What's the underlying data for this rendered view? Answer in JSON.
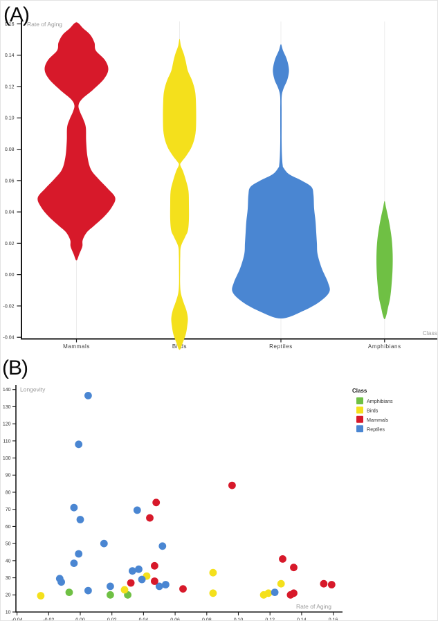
{
  "palette": {
    "Amphibians": "#6fc044",
    "Birds": "#f4e01c",
    "Mammals": "#d7192a",
    "Reptiles": "#4a86d2"
  },
  "text_colors": {
    "axis_title_gray": "#9b9b9b",
    "tick_label": "#333333",
    "category_label": "#3a3a3a",
    "axis_line": "#1a1a1a",
    "gridline": "#ececec",
    "legend_title": "#222222",
    "legend_label": "#333333"
  },
  "chart_data": [
    {
      "type": "violin",
      "panel": "A",
      "title": "(A)",
      "ylabel": "Rate of Aging",
      "xlabel": "Class",
      "ylim": [
        -0.04,
        0.16
      ],
      "yticks": [
        0.16,
        0.14,
        0.12,
        0.1,
        0.08,
        0.06,
        0.04,
        0.02,
        0.0,
        -0.02,
        -0.04
      ],
      "grid": "faint vertical line per category",
      "categories": [
        "Mammals",
        "Birds",
        "Reptiles",
        "Amphibians"
      ],
      "profile_units": "pairs of [rate_of_aging_value, half_width_px]",
      "series": [
        {
          "name": "Mammals",
          "color": "#d7192a",
          "profile": [
            [
              0.161,
              0
            ],
            [
              0.157,
              10
            ],
            [
              0.153,
              20
            ],
            [
              0.148,
              26
            ],
            [
              0.143,
              28
            ],
            [
              0.137,
              41
            ],
            [
              0.131,
              46
            ],
            [
              0.125,
              40
            ],
            [
              0.118,
              24
            ],
            [
              0.112,
              8
            ],
            [
              0.108,
              3
            ],
            [
              0.104,
              5
            ],
            [
              0.099,
              10
            ],
            [
              0.094,
              13.5
            ],
            [
              0.085,
              14
            ],
            [
              0.075,
              16
            ],
            [
              0.067,
              21
            ],
            [
              0.061,
              32
            ],
            [
              0.055,
              45
            ],
            [
              0.049,
              56
            ],
            [
              0.043,
              51
            ],
            [
              0.037,
              40
            ],
            [
              0.031,
              25
            ],
            [
              0.027,
              15
            ],
            [
              0.022,
              9
            ],
            [
              0.018,
              8.5
            ],
            [
              0.013,
              4
            ],
            [
              0.009,
              0
            ]
          ]
        },
        {
          "name": "Birds",
          "color": "#f4e01c",
          "profile": [
            [
              0.1505,
              0
            ],
            [
              0.146,
              2
            ],
            [
              0.141,
              6
            ],
            [
              0.136,
              9
            ],
            [
              0.13,
              12
            ],
            [
              0.124,
              18
            ],
            [
              0.118,
              22
            ],
            [
              0.112,
              23.5
            ],
            [
              0.1,
              24
            ],
            [
              0.09,
              23
            ],
            [
              0.082,
              18
            ],
            [
              0.076,
              10
            ],
            [
              0.072,
              3
            ],
            [
              0.07,
              1
            ],
            [
              0.066,
              5
            ],
            [
              0.059,
              10
            ],
            [
              0.053,
              13
            ],
            [
              0.045,
              13.5
            ],
            [
              0.035,
              13.5
            ],
            [
              0.028,
              12
            ],
            [
              0.024,
              8
            ],
            [
              0.018,
              2
            ],
            [
              0.012,
              1
            ],
            [
              0.002,
              0.8
            ],
            [
              -0.006,
              0.8
            ],
            [
              -0.012,
              2
            ],
            [
              -0.018,
              6
            ],
            [
              -0.023,
              10
            ],
            [
              -0.028,
              12
            ],
            [
              -0.033,
              11
            ],
            [
              -0.038,
              9
            ],
            [
              -0.043,
              5
            ],
            [
              -0.048,
              0
            ]
          ]
        },
        {
          "name": "Reptiles",
          "color": "#4a86d2",
          "profile": [
            [
              0.147,
              0
            ],
            [
              0.143,
              3
            ],
            [
              0.138,
              8
            ],
            [
              0.133,
              11
            ],
            [
              0.129,
              11.5
            ],
            [
              0.124,
              9
            ],
            [
              0.119,
              4
            ],
            [
              0.114,
              1.2
            ],
            [
              0.105,
              1
            ],
            [
              0.095,
              1
            ],
            [
              0.085,
              1
            ],
            [
              0.076,
              1.5
            ],
            [
              0.07,
              2.5
            ],
            [
              0.068,
              4
            ],
            [
              0.064,
              12
            ],
            [
              0.06,
              30
            ],
            [
              0.056,
              44
            ],
            [
              0.051,
              47
            ],
            [
              0.042,
              48
            ],
            [
              0.034,
              50
            ],
            [
              0.027,
              51
            ],
            [
              0.02,
              52
            ],
            [
              0.013,
              53
            ],
            [
              0.004,
              59
            ],
            [
              -0.005,
              68
            ],
            [
              -0.011,
              70
            ],
            [
              -0.017,
              57
            ],
            [
              -0.023,
              33
            ],
            [
              -0.028,
              0
            ]
          ]
        },
        {
          "name": "Amphibians",
          "color": "#6fc044",
          "profile": [
            [
              0.047,
              0
            ],
            [
              0.043,
              2
            ],
            [
              0.037,
              5
            ],
            [
              0.03,
              8
            ],
            [
              0.022,
              10.5
            ],
            [
              0.013,
              11.7
            ],
            [
              0.003,
              11.5
            ],
            [
              -0.007,
              10
            ],
            [
              -0.015,
              8
            ],
            [
              -0.021,
              5
            ],
            [
              -0.026,
              2.5
            ],
            [
              -0.0285,
              0
            ]
          ]
        }
      ]
    },
    {
      "type": "scatter",
      "panel": "B",
      "title": "(B)",
      "xlabel": "Rate of Aging",
      "ylabel": "Longevity",
      "xlim": [
        -0.04,
        0.16
      ],
      "ylim": [
        10,
        140
      ],
      "xticks": [
        -0.04,
        -0.02,
        0.0,
        0.02,
        0.04,
        0.06,
        0.08,
        0.1,
        0.12,
        0.14,
        0.16
      ],
      "yticks": [
        140,
        130,
        120,
        110,
        100,
        90,
        80,
        70,
        60,
        50,
        40,
        30,
        20,
        10
      ],
      "grid": "off",
      "legend": {
        "title": "Class",
        "position": "top-right"
      },
      "point_units": "pairs of [rate_of_aging, longevity]",
      "series": [
        {
          "name": "Amphibians",
          "color": "#6fc044",
          "points": [
            [
              -0.007,
              21.5
            ],
            [
              0.019,
              20
            ],
            [
              0.03,
              20
            ]
          ]
        },
        {
          "name": "Birds",
          "color": "#f4e01c",
          "points": [
            [
              -0.025,
              19.5
            ],
            [
              0.028,
              23
            ],
            [
              0.042,
              31
            ],
            [
              0.084,
              33
            ],
            [
              0.084,
              21
            ],
            [
              0.116,
              20
            ],
            [
              0.119,
              21
            ],
            [
              0.127,
              26.5
            ]
          ]
        },
        {
          "name": "Mammals",
          "color": "#d7192a",
          "points": [
            [
              0.096,
              84
            ],
            [
              0.048,
              74
            ],
            [
              0.044,
              65
            ],
            [
              0.047,
              37
            ],
            [
              0.128,
              41
            ],
            [
              0.135,
              36
            ],
            [
              0.032,
              27
            ],
            [
              0.047,
              28
            ],
            [
              0.065,
              23.5
            ],
            [
              0.133,
              20
            ],
            [
              0.135,
              21
            ],
            [
              0.154,
              26.5
            ],
            [
              0.159,
              26
            ]
          ]
        },
        {
          "name": "Reptiles",
          "color": "#4a86d2",
          "points": [
            [
              0.005,
              136.5
            ],
            [
              -0.001,
              108
            ],
            [
              -0.004,
              71
            ],
            [
              0.0,
              64
            ],
            [
              0.036,
              69.5
            ],
            [
              0.015,
              50
            ],
            [
              0.052,
              48.5
            ],
            [
              -0.001,
              44
            ],
            [
              -0.004,
              38.5
            ],
            [
              -0.013,
              29.5
            ],
            [
              -0.012,
              27.5
            ],
            [
              0.033,
              34
            ],
            [
              0.037,
              35
            ],
            [
              0.039,
              29
            ],
            [
              0.05,
              25
            ],
            [
              0.054,
              26
            ],
            [
              0.019,
              25
            ],
            [
              0.005,
              22.5
            ],
            [
              0.123,
              21.5
            ]
          ]
        }
      ]
    }
  ]
}
